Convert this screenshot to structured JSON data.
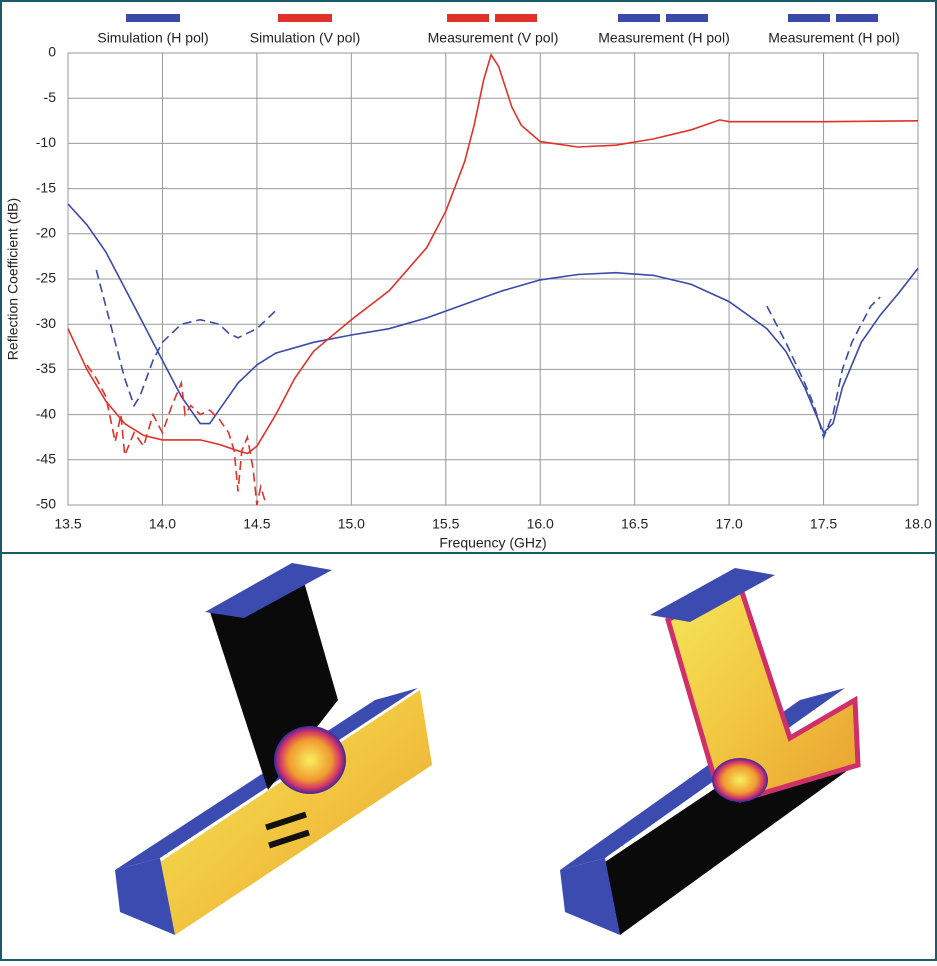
{
  "chart_data": {
    "type": "line",
    "xlabel": "Frequency (GHz)",
    "ylabel": "Reflection Coefficient (dB)",
    "xlim": [
      13.5,
      18.0
    ],
    "xticks": [
      13.5,
      {
        "value": 14,
        "label": "14.0"
      },
      14.5,
      {
        "value": 15,
        "label": "15.0"
      },
      15.5,
      {
        "value": 16,
        "label": "16.0"
      },
      16.5,
      {
        "value": 17,
        "label": "17.0"
      },
      17.5,
      {
        "value": 18,
        "label": "18.0"
      }
    ],
    "ylim": [
      -50,
      0
    ],
    "yticks": [
      0,
      -5,
      -10,
      -15,
      -20,
      -25,
      -30,
      -35,
      -40,
      -45,
      -50
    ],
    "grid": true,
    "series": [
      {
        "name": "Simulation (H pol)",
        "color": "#3a4aa8",
        "dash": false,
        "x": [
          13.5,
          13.6,
          13.7,
          13.8,
          13.9,
          14.0,
          14.1,
          14.2,
          14.25,
          14.3,
          14.4,
          14.5,
          14.6,
          14.8,
          15.0,
          15.2,
          15.4,
          15.6,
          15.8,
          16.0,
          16.2,
          16.4,
          16.6,
          16.8,
          17.0,
          17.2,
          17.3,
          17.4,
          17.5,
          17.55,
          17.6,
          17.7,
          17.8,
          17.9,
          18.0
        ],
        "values": [
          -16.7,
          -19,
          -22,
          -26,
          -30,
          -34,
          -38,
          -41,
          -41,
          -39.5,
          -36.5,
          -34.5,
          -33.2,
          -32,
          -31.2,
          -30.5,
          -29.3,
          -27.8,
          -26.3,
          -25.1,
          -24.5,
          -24.3,
          -24.6,
          -25.6,
          -27.5,
          -30.5,
          -33,
          -37,
          -42,
          -41,
          -37,
          -32,
          -29,
          -26.5,
          -23.8
        ]
      },
      {
        "name": "Simulation (V pol)",
        "color": "#e0322a",
        "dash": false,
        "x": [
          13.5,
          13.6,
          13.7,
          13.8,
          13.9,
          14.0,
          14.2,
          14.3,
          14.4,
          14.45,
          14.5,
          14.6,
          14.7,
          14.8,
          15.0,
          15.2,
          15.4,
          15.5,
          15.6,
          15.65,
          15.7,
          15.74,
          15.78,
          15.85,
          15.9,
          16.0,
          16.2,
          16.4,
          16.6,
          16.8,
          16.95,
          17.0,
          17.5,
          18.0
        ],
        "values": [
          -30.5,
          -35,
          -38.5,
          -41,
          -42.3,
          -42.8,
          -42.8,
          -43.3,
          -44,
          -44.3,
          -43.5,
          -40,
          -36,
          -33,
          -29.5,
          -26.3,
          -21.5,
          -17.5,
          -12,
          -8,
          -3,
          -0.2,
          -1.5,
          -6,
          -8,
          -9.8,
          -10.4,
          -10.2,
          -9.5,
          -8.5,
          -7.4,
          -7.6,
          -7.6,
          -7.5
        ]
      },
      {
        "name": "Measurement (V pol)",
        "color": "#e0322a",
        "dash": true,
        "x": [
          13.6,
          13.65,
          13.7,
          13.75,
          13.78,
          13.8,
          13.85,
          13.9,
          13.95,
          14.0,
          14.05,
          14.1,
          14.12,
          14.15,
          14.2,
          14.25,
          14.3,
          14.35,
          14.38,
          14.4,
          14.42,
          14.45,
          14.48,
          14.5,
          14.52,
          14.55
        ],
        "values": [
          -34.5,
          -36,
          -38,
          -43,
          -40,
          -44.5,
          -42,
          -43.5,
          -40,
          -42,
          -39,
          -36.5,
          -40,
          -39,
          -40,
          -39.5,
          -40.5,
          -42,
          -44,
          -48.5,
          -44,
          -42.5,
          -46,
          -50,
          -48,
          -50
        ]
      },
      {
        "name": "Measurement (H pol)",
        "color": "#3a4aa8",
        "dash": true,
        "x": [
          13.65,
          13.7,
          13.75,
          13.8,
          13.85,
          13.88,
          13.95,
          14.0,
          14.1,
          14.2,
          14.3,
          14.35,
          14.4,
          14.45,
          14.5,
          14.55,
          14.6
        ],
        "values": [
          -24,
          -28,
          -32,
          -36,
          -39,
          -38,
          -34,
          -32,
          -30,
          -29.5,
          -30,
          -31,
          -31.5,
          -31,
          -30.5,
          -29.5,
          -28.5
        ]
      },
      {
        "name": "Measurement (H pol)",
        "color": "#3a4aa8",
        "dash": true,
        "x": [
          17.2,
          17.25,
          17.3,
          17.4,
          17.45,
          17.5,
          17.55,
          17.6,
          17.65,
          17.7,
          17.75,
          17.8
        ],
        "values": [
          -28,
          -30,
          -32,
          -36.5,
          -39,
          -42.5,
          -40,
          -35,
          -32,
          -30,
          -28,
          -27
        ]
      }
    ]
  }
}
